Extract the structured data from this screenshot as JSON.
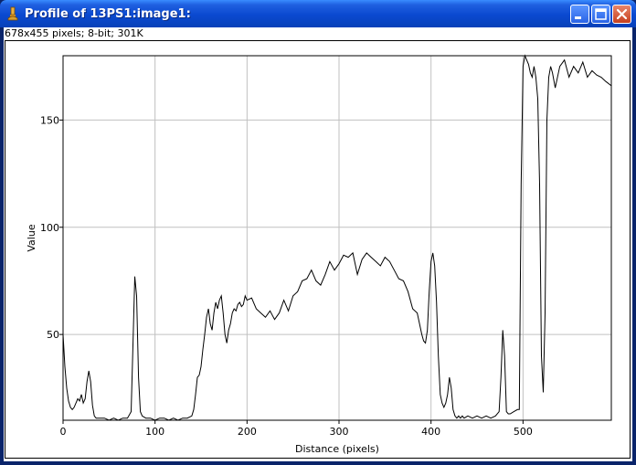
{
  "window": {
    "title": "Profile of 13PS1:image1:",
    "info": "678x455 pixels; 8-bit; 301K",
    "buttons": [
      "minimize",
      "maximize",
      "close"
    ]
  },
  "icons": {
    "app": "microscope-icon",
    "minimize": "minimize-icon",
    "maximize": "maximize-icon",
    "close": "close-icon"
  },
  "colors": {
    "titlebar": "#0a49d0",
    "plot_line": "#000000",
    "grid": "#c0c0c0"
  },
  "chart_data": {
    "type": "line",
    "title": "",
    "xlabel": "Distance (pixels)",
    "ylabel": "Value",
    "xlim": [
      0,
      596
    ],
    "ylim": [
      10,
      180
    ],
    "grid": true,
    "x_ticks": [
      0,
      100,
      200,
      300,
      400,
      500
    ],
    "y_ticks": [
      50,
      100,
      150
    ],
    "series": [
      {
        "x": [
          0,
          2,
          4,
          6,
          8,
          10,
          12,
          14,
          16,
          18,
          20,
          22,
          24,
          26,
          28,
          30,
          32,
          34,
          36,
          38,
          40,
          45,
          50,
          55,
          60,
          65,
          70,
          74,
          76,
          78,
          80,
          82,
          84,
          86,
          90,
          95,
          100,
          105,
          110,
          115,
          120,
          125,
          130,
          135,
          140,
          142,
          144,
          146,
          148,
          150,
          152,
          154,
          156,
          158,
          160,
          162,
          164,
          166,
          168,
          170,
          172,
          174,
          176,
          178,
          180,
          182,
          184,
          186,
          188,
          190,
          192,
          194,
          196,
          198,
          200,
          205,
          210,
          215,
          220,
          225,
          230,
          235,
          240,
          245,
          250,
          255,
          260,
          265,
          270,
          275,
          280,
          285,
          290,
          295,
          300,
          305,
          310,
          315,
          320,
          325,
          330,
          335,
          340,
          345,
          350,
          355,
          360,
          365,
          370,
          375,
          380,
          385,
          390,
          392,
          394,
          396,
          398,
          400,
          402,
          404,
          406,
          408,
          410,
          412,
          414,
          416,
          418,
          420,
          422,
          424,
          426,
          428,
          430,
          432,
          434,
          436,
          440,
          445,
          450,
          455,
          460,
          465,
          470,
          474,
          476,
          478,
          480,
          482,
          484,
          486,
          490,
          494,
          496,
          498,
          500,
          502,
          504,
          506,
          508,
          510,
          512,
          514,
          516,
          518,
          520,
          522,
          524,
          526,
          528,
          530,
          532,
          535,
          540,
          545,
          550,
          555,
          560,
          565,
          570,
          575,
          580,
          585,
          590,
          596
        ],
        "y": [
          50,
          35,
          25,
          19,
          16,
          15,
          16,
          18,
          20,
          19,
          22,
          18,
          20,
          28,
          33,
          28,
          17,
          12,
          11,
          11,
          11,
          11,
          10,
          11,
          10,
          11,
          11,
          14,
          45,
          77,
          68,
          30,
          14,
          12,
          11,
          11,
          10,
          11,
          11,
          10,
          11,
          10,
          11,
          11,
          12,
          15,
          22,
          30,
          31,
          35,
          43,
          50,
          58,
          62,
          55,
          52,
          60,
          65,
          62,
          66,
          68,
          60,
          50,
          46,
          52,
          55,
          60,
          62,
          61,
          64,
          65,
          63,
          64,
          68,
          66,
          67,
          62,
          60,
          58,
          61,
          57,
          60,
          66,
          61,
          68,
          70,
          75,
          76,
          80,
          75,
          73,
          78,
          84,
          80,
          83,
          87,
          86,
          88,
          78,
          85,
          88,
          86,
          84,
          82,
          86,
          84,
          80,
          76,
          75,
          70,
          62,
          60,
          50,
          47,
          46,
          52,
          70,
          84,
          88,
          82,
          65,
          40,
          22,
          18,
          16,
          18,
          22,
          30,
          25,
          15,
          12,
          11,
          12,
          11,
          12,
          11,
          12,
          11,
          12,
          11,
          12,
          11,
          12,
          14,
          30,
          52,
          40,
          14,
          13,
          13,
          14,
          15,
          15,
          120,
          175,
          180,
          178,
          176,
          172,
          170,
          175,
          170,
          160,
          120,
          40,
          23,
          60,
          150,
          170,
          175,
          172,
          165,
          175,
          178,
          170,
          175,
          172,
          177,
          170,
          173,
          171,
          170,
          168,
          166
        ]
      }
    ]
  }
}
